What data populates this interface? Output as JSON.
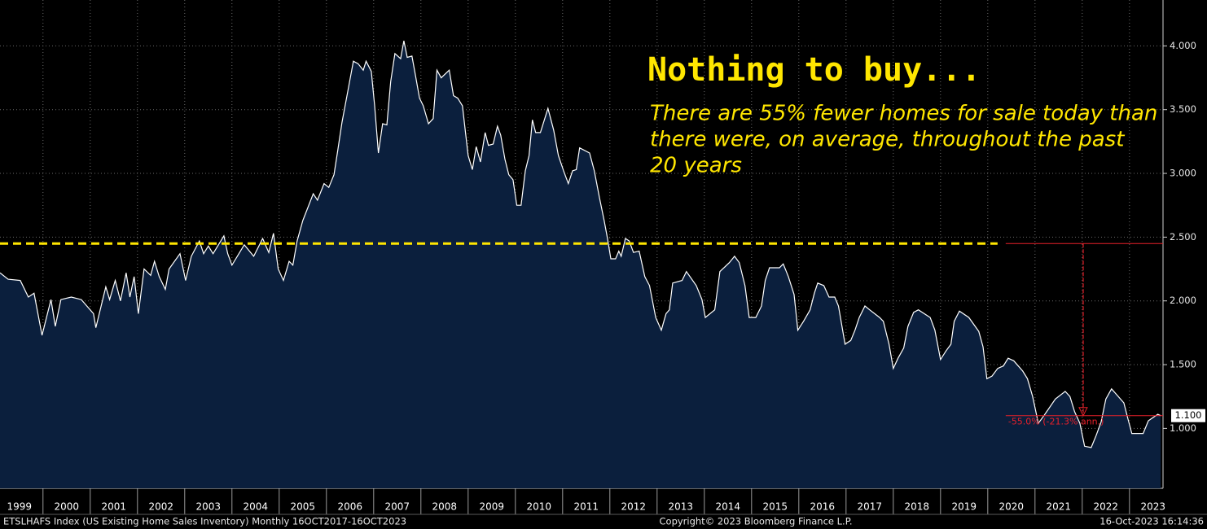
{
  "chart_data": {
    "type": "area",
    "title": "Nothing to buy...",
    "subtitle": [
      "There are 55% fewer homes for sale today than",
      "there were, on average, throughout the past",
      "20 years"
    ],
    "footer_left": "ETSLHAFS Index (US Existing Home Sales Inventory)  Monthly 16OCT2017-16OCT2023",
    "footer_center": "Copyright© 2023 Bloomberg Finance L.P.",
    "footer_right": "16-Oct-2023 16:14:36",
    "xlim": [
      1999.09,
      2023.71
    ],
    "xticks": [
      1999,
      2000,
      2001,
      2002,
      2003,
      2004,
      2005,
      2006,
      2007,
      2008,
      2009,
      2010,
      2011,
      2012,
      2013,
      2014,
      2015,
      2016,
      2017,
      2018,
      2019,
      2020,
      2021,
      2022,
      2023
    ],
    "ylim": [
      0.53,
      4.36
    ],
    "yticks": [
      {
        "value": 1,
        "label": "1.000"
      },
      {
        "value": 1.5,
        "label": "1.500"
      },
      {
        "value": 2,
        "label": "2.000"
      },
      {
        "value": 2.5,
        "label": "2.500"
      },
      {
        "value": 3,
        "label": "3.000"
      },
      {
        "value": 3.5,
        "label": "3.500"
      },
      {
        "value": 4,
        "label": "4.000"
      }
    ],
    "grid": true,
    "series": [
      {
        "line_color": "#ffffff",
        "color": "#0b1f3d",
        "x": [
          1999.09,
          1999.26,
          1999.52,
          1999.69,
          1999.81,
          1999.98,
          2000.17,
          2000.26,
          2000.38,
          2000.6,
          2000.81,
          2001.07,
          2001.12,
          2001.33,
          2001.41,
          2001.53,
          2001.64,
          2001.76,
          2001.84,
          2001.93,
          2002.02,
          2002.14,
          2002.28,
          2002.36,
          2002.46,
          2002.59,
          2002.67,
          2002.9,
          2003.02,
          2003.14,
          2003.31,
          2003.4,
          2003.5,
          2003.6,
          2003.83,
          2003.91,
          2004.0,
          2004.26,
          2004.46,
          2004.65,
          2004.78,
          2004.88,
          2004.98,
          2005.09,
          2005.21,
          2005.29,
          2005.38,
          2005.5,
          2005.72,
          2005.81,
          2005.95,
          2006.05,
          2006.16,
          2006.24,
          2006.33,
          2006.46,
          2006.57,
          2006.67,
          2006.78,
          2006.84,
          2006.95,
          2007.02,
          2007.1,
          2007.19,
          2007.28,
          2007.36,
          2007.45,
          2007.57,
          2007.64,
          2007.71,
          2007.81,
          2007.88,
          2007.97,
          2008.05,
          2008.16,
          2008.26,
          2008.34,
          2008.43,
          2008.6,
          2008.69,
          2008.78,
          2008.88,
          2009.0,
          2009.09,
          2009.17,
          2009.26,
          2009.36,
          2009.43,
          2009.53,
          2009.62,
          2009.69,
          2009.78,
          2009.86,
          2009.95,
          2010.03,
          2010.12,
          2010.21,
          2010.29,
          2010.36,
          2010.43,
          2010.53,
          2010.69,
          2010.81,
          2010.91,
          2011.02,
          2011.12,
          2011.21,
          2011.29,
          2011.36,
          2011.57,
          2011.67,
          2011.78,
          2011.88,
          2011.95,
          2012.02,
          2012.12,
          2012.19,
          2012.24,
          2012.33,
          2012.41,
          2012.5,
          2012.62,
          2012.74,
          2012.84,
          2012.97,
          2013.09,
          2013.19,
          2013.26,
          2013.33,
          2013.53,
          2013.62,
          2013.83,
          2013.95,
          2014.02,
          2014.22,
          2014.33,
          2014.53,
          2014.64,
          2014.74,
          2014.86,
          2014.95,
          2015.09,
          2015.21,
          2015.29,
          2015.38,
          2015.59,
          2015.67,
          2015.78,
          2015.9,
          2015.98,
          2016.1,
          2016.24,
          2016.33,
          2016.4,
          2016.53,
          2016.64,
          2016.76,
          2016.84,
          2016.98,
          2017.1,
          2017.19,
          2017.28,
          2017.4,
          2017.5,
          2017.71,
          2017.79,
          2017.91,
          2018.0,
          2018.1,
          2018.22,
          2018.31,
          2018.43,
          2018.53,
          2018.78,
          2018.88,
          2019.0,
          2019.12,
          2019.22,
          2019.29,
          2019.4,
          2019.6,
          2019.81,
          2019.9,
          2019.98,
          2020.09,
          2020.21,
          2020.33,
          2020.43,
          2020.55,
          2020.74,
          2020.84,
          2020.95,
          2021.07,
          2021.19,
          2021.43,
          2021.64,
          2021.74,
          2021.84,
          2021.95,
          2022.05,
          2022.19,
          2022.29,
          2022.4,
          2022.5,
          2022.62,
          2022.74,
          2022.88,
          2022.97,
          2023.05,
          2023.29,
          2023.4,
          2023.48,
          2023.6,
          2023.66
        ],
        "values": [
          2.22,
          2.17,
          2.16,
          2.03,
          2.06,
          1.73,
          2.01,
          1.8,
          2.01,
          2.03,
          2.01,
          1.9,
          1.79,
          2.11,
          2.01,
          2.16,
          2.0,
          2.22,
          2.03,
          2.19,
          1.9,
          2.25,
          2.2,
          2.31,
          2.19,
          2.09,
          2.25,
          2.37,
          2.16,
          2.35,
          2.47,
          2.37,
          2.43,
          2.37,
          2.51,
          2.37,
          2.28,
          2.44,
          2.35,
          2.49,
          2.38,
          2.53,
          2.25,
          2.16,
          2.31,
          2.28,
          2.47,
          2.63,
          2.84,
          2.79,
          2.92,
          2.89,
          2.99,
          3.18,
          3.4,
          3.66,
          3.88,
          3.86,
          3.81,
          3.88,
          3.8,
          3.53,
          3.16,
          3.39,
          3.38,
          3.72,
          3.94,
          3.9,
          4.04,
          3.91,
          3.92,
          3.78,
          3.59,
          3.53,
          3.39,
          3.43,
          3.81,
          3.75,
          3.81,
          3.61,
          3.59,
          3.53,
          3.14,
          3.03,
          3.21,
          3.09,
          3.32,
          3.22,
          3.23,
          3.37,
          3.3,
          3.11,
          2.99,
          2.95,
          2.75,
          2.75,
          3.02,
          3.14,
          3.42,
          3.32,
          3.32,
          3.51,
          3.34,
          3.14,
          3.02,
          2.92,
          3.02,
          3.03,
          3.2,
          3.16,
          3.02,
          2.81,
          2.63,
          2.49,
          2.33,
          2.33,
          2.39,
          2.35,
          2.49,
          2.47,
          2.38,
          2.39,
          2.19,
          2.12,
          1.87,
          1.77,
          1.9,
          1.93,
          2.14,
          2.16,
          2.23,
          2.12,
          2.01,
          1.87,
          1.93,
          2.23,
          2.3,
          2.35,
          2.3,
          2.12,
          1.87,
          1.87,
          1.96,
          2.16,
          2.26,
          2.26,
          2.29,
          2.19,
          2.05,
          1.77,
          1.84,
          1.93,
          2.06,
          2.14,
          2.12,
          2.03,
          2.03,
          1.96,
          1.66,
          1.69,
          1.77,
          1.87,
          1.96,
          1.93,
          1.87,
          1.84,
          1.66,
          1.47,
          1.55,
          1.63,
          1.8,
          1.91,
          1.93,
          1.87,
          1.77,
          1.54,
          1.61,
          1.66,
          1.84,
          1.92,
          1.87,
          1.76,
          1.64,
          1.39,
          1.41,
          1.47,
          1.49,
          1.55,
          1.53,
          1.45,
          1.39,
          1.25,
          1.04,
          1.1,
          1.23,
          1.29,
          1.25,
          1.13,
          1.04,
          0.86,
          0.85,
          0.94,
          1.05,
          1.23,
          1.31,
          1.26,
          1.2,
          1.07,
          0.96,
          0.96,
          1.06,
          1.08,
          1.11,
          1.1
        ],
        "last_value_label": "1.100"
      }
    ],
    "reference_line": {
      "value": 2.45,
      "color": "#ffe600",
      "style": "dashed"
    },
    "change_annotation": {
      "from": 2.45,
      "to": 1.1,
      "x_from": 2020.38,
      "x_mark": 2022.02,
      "label": "-55.0% (-21.3% ann.)",
      "color": "#e8202a"
    }
  }
}
